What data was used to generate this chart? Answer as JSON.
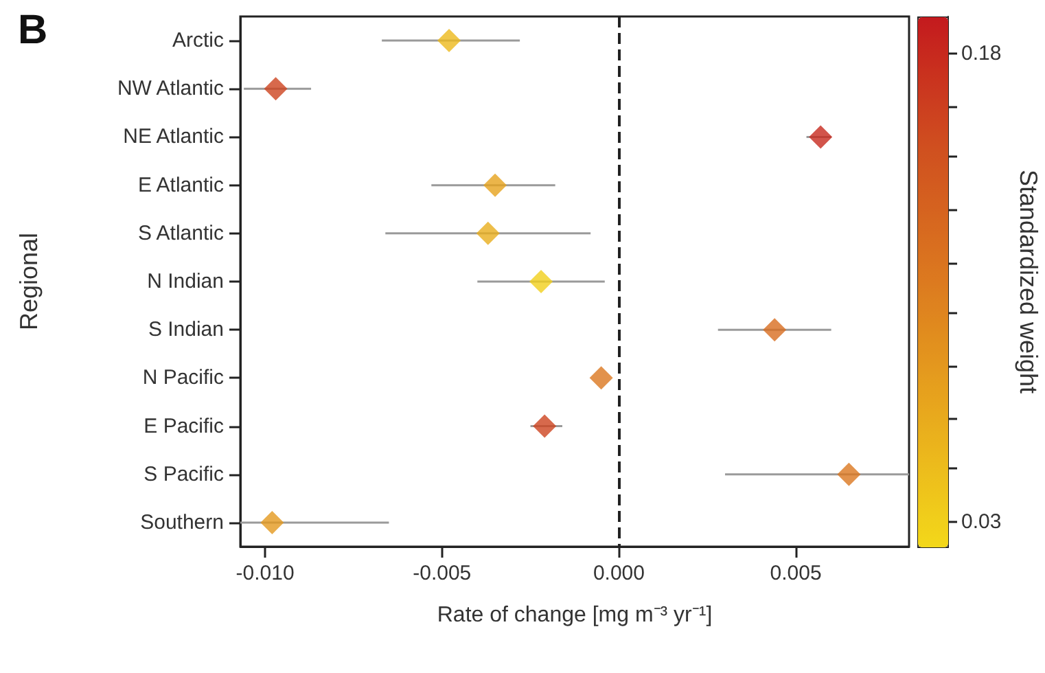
{
  "chart_data": {
    "type": "scatter",
    "orientation": "horizontal",
    "title": "B",
    "xlabel": "Rate of change [mg m⁻³ yr⁻¹]",
    "ylabel": "Regional",
    "clabel": "Standardized weight",
    "categories": [
      "Arctic",
      "NW Atlantic",
      "NE Atlantic",
      "E Atlantic",
      "S Atlantic",
      "N Indian",
      "S Indian",
      "N Pacific",
      "E Pacific",
      "S Pacific",
      "Southern"
    ],
    "values": [
      -0.0048,
      -0.0097,
      0.0057,
      -0.0035,
      -0.0037,
      -0.0022,
      0.0044,
      -0.0005,
      -0.0021,
      0.0065,
      -0.0098
    ],
    "errors": [
      [
        -0.0067,
        -0.0028
      ],
      [
        -0.0106,
        -0.0087
      ],
      [
        0.0053,
        0.006
      ],
      [
        -0.0053,
        -0.0018
      ],
      [
        -0.0066,
        -0.0008
      ],
      [
        -0.004,
        -0.0004
      ],
      [
        0.0028,
        0.006
      ],
      null,
      [
        -0.0025,
        -0.0016
      ],
      [
        0.003,
        0.0082
      ],
      [
        -0.0107,
        -0.0065
      ]
    ],
    "cvalues": [
      0.05,
      0.16,
      0.18,
      0.07,
      0.06,
      0.03,
      0.12,
      0.11,
      0.16,
      0.11,
      0.08
    ],
    "clim": [
      0.022,
      0.192
    ],
    "cticks": [
      0.03,
      {
        "value": 0.047,
        "label": null
      },
      {
        "value": 0.063,
        "label": null
      },
      {
        "value": 0.08,
        "label": null
      },
      {
        "value": 0.097,
        "label": null
      },
      {
        "value": 0.113,
        "label": null
      },
      {
        "value": 0.13,
        "label": null
      },
      {
        "value": 0.147,
        "label": null
      },
      {
        "value": 0.163,
        "label": null
      },
      0.18
    ],
    "xlim": [
      -0.0107,
      0.0082
    ],
    "xticks": [
      {
        "value": -0.01,
        "label": "-0.010"
      },
      {
        "value": -0.005,
        "label": "-0.005"
      },
      {
        "value": 0,
        "label": "0.000"
      },
      {
        "value": 0.005,
        "label": "0.005"
      }
    ],
    "ref_lines": [
      {
        "axis": "x",
        "value": 0,
        "line_style": "dashed",
        "color": "#222222"
      }
    ],
    "marker": "diamond",
    "grid": false
  }
}
